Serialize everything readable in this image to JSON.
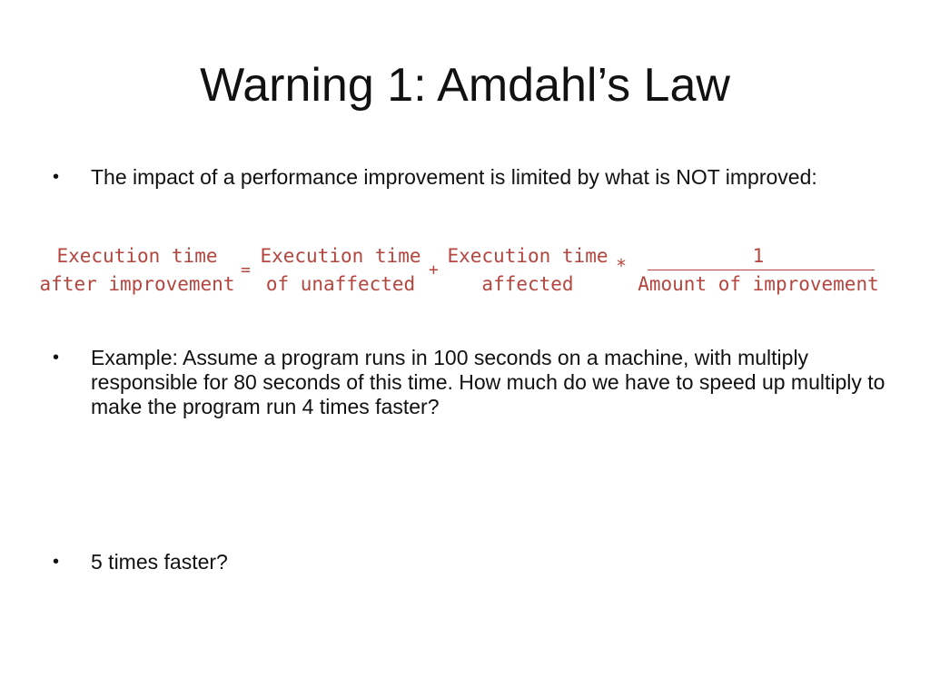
{
  "slide": {
    "title": "Warning 1: Amdahl’s Law",
    "bullets": [
      {
        "marker": "•",
        "text": "The impact of a performance improvement is limited by what is NOT improved:"
      },
      {
        "marker": "•",
        "text": "Example:  Assume a program runs in 100 seconds on a machine, with multiply responsible for 80 seconds of this time.  How much do we have to speed up multiply to make the program run 4 times faster?"
      },
      {
        "marker": "•",
        "text": "5 times faster?"
      }
    ],
    "formula": {
      "lhs_line1": "Execution time",
      "lhs_line2": "after improvement",
      "equals": "=",
      "term1_line1": "Execution time",
      "term1_line2": "of unaffected",
      "plus": "+",
      "term2_line1": "Execution time",
      "term2_line2": "affected",
      "times": "*",
      "numerator": "1",
      "denominator": "Amount of improvement"
    },
    "colors": {
      "formula": "#b5453f",
      "text": "#111111",
      "background": "#ffffff"
    }
  }
}
